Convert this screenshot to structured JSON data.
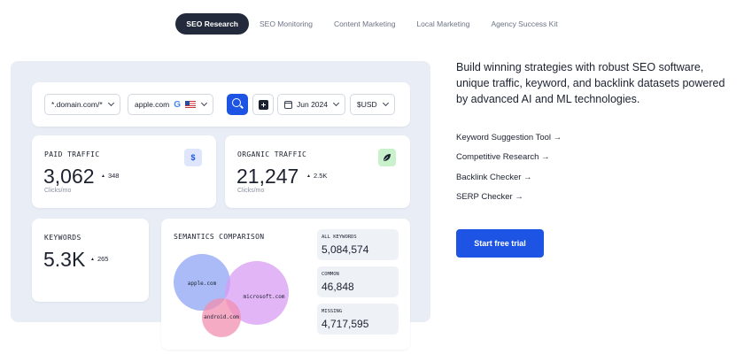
{
  "tabs": [
    {
      "label": "SEO Research",
      "active": true
    },
    {
      "label": "SEO Monitoring",
      "active": false
    },
    {
      "label": "Content Marketing",
      "active": false
    },
    {
      "label": "Local Marketing",
      "active": false
    },
    {
      "label": "Agency Success Kit",
      "active": false
    }
  ],
  "filters": {
    "domain_scope": "*.domain.com/*",
    "domain": "apple.com",
    "search_engine_icon": "google-icon",
    "country_icon": "us-flag-icon",
    "date": "Jun 2024",
    "currency": "$USD"
  },
  "paid_traffic": {
    "label": "PAID TRAFFIC",
    "value": "3,062",
    "delta": "348",
    "unit": "Clicks/mo",
    "icon": "dollar-icon",
    "icon_glyph": "$"
  },
  "organic_traffic": {
    "label": "ORGANIC TRAFFIC",
    "value": "21,247",
    "delta": "2.5K",
    "unit": "Clicks/mo",
    "icon": "leaf-icon"
  },
  "keywords": {
    "label": "KEYWORDS",
    "value": "5.3K",
    "delta": "265"
  },
  "semantics": {
    "title": "SEMANTICS COMPARISON",
    "domains": [
      "apple.com",
      "microsoft.com",
      "android.com"
    ],
    "stats": [
      {
        "label": "ALL KEYWORDS",
        "value": "5,084,574"
      },
      {
        "label": "COMMON",
        "value": "46,848"
      },
      {
        "label": "MISSING",
        "value": "4,717,595"
      }
    ]
  },
  "copy": {
    "headline": "Build winning strategies with robust SEO software, unique traffic, keyword, and backlink datasets powered by advanced AI and ML technologies.",
    "links": [
      "Keyword Suggestion Tool →",
      "Competitive Research →",
      "Backlink Checker →",
      "SERP Checker →"
    ],
    "cta": "Start free trial"
  },
  "colors": {
    "accent": "#1e54e4",
    "dark": "#222a3b",
    "panel": "#e9edf5",
    "venn_apple": "#8ea4f4",
    "venn_microsoft": "#d79cf3",
    "venn_android": "#f18fb0"
  }
}
